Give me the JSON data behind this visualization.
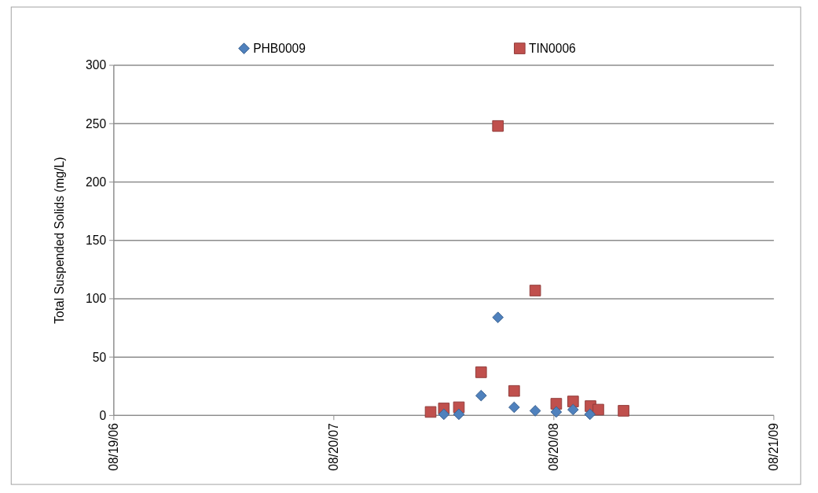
{
  "chart_data": {
    "type": "scatter",
    "ylabel": "Total Suspended Solids (mg/L)",
    "xlim": [
      "2006-08-19",
      "2009-08-21"
    ],
    "xticks": [
      {
        "value": "2006-08-19",
        "label": "08/19/06"
      },
      {
        "value": "2007-08-20",
        "label": "08/20/07"
      },
      {
        "value": "2008-08-20",
        "label": "08/20/08"
      },
      {
        "value": "2009-08-21",
        "label": "08/21/09"
      }
    ],
    "ylim": [
      0,
      300
    ],
    "yticks": [
      0,
      50,
      100,
      150,
      200,
      250,
      300
    ],
    "grid": "y",
    "legend": "top",
    "series": [
      {
        "name": "PHB0009",
        "color": "#4f81bd",
        "marker": "diamond",
        "x": [
          "2008-02-19",
          "2008-03-15",
          "2008-04-21",
          "2008-05-19",
          "2008-06-15",
          "2008-07-20",
          "2008-08-24",
          "2008-09-21",
          "2008-10-19"
        ],
        "values": [
          1,
          1,
          17,
          84,
          7,
          4,
          3,
          5,
          1
        ]
      },
      {
        "name": "TIN0006",
        "color": "#c0504d",
        "marker": "square",
        "x": [
          "2008-01-28",
          "2008-02-19",
          "2008-03-15",
          "2008-04-21",
          "2008-05-19",
          "2008-06-15",
          "2008-07-20",
          "2008-08-24",
          "2008-09-21",
          "2008-10-20",
          "2008-11-02",
          "2008-12-14"
        ],
        "values": [
          3,
          6,
          7,
          37,
          248,
          21,
          107,
          10,
          12,
          8,
          5,
          4
        ]
      }
    ]
  }
}
